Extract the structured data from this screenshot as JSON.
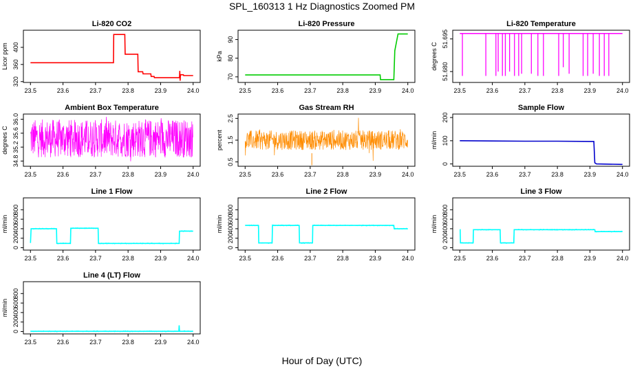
{
  "main_title": "SPL_160313  1 Hz Diagnostics Zoomed PM",
  "x_axis_title": "Hour of Day (UTC)",
  "chart_data": [
    {
      "type": "line",
      "title": "Li-820 CO2",
      "ylabel": "Licor ppm",
      "color": "#ff0000",
      "xlim": [
        23.5,
        24.0
      ],
      "ylim": [
        318,
        440
      ],
      "xticks": [
        "23.5",
        "23.6",
        "23.7",
        "23.8",
        "23.9",
        "24.0"
      ],
      "yticks": [
        "320",
        "360",
        "400"
      ],
      "x": [
        23.5,
        23.6,
        23.7,
        23.755,
        23.756,
        23.79,
        23.791,
        23.83,
        23.831,
        23.845,
        23.846,
        23.87,
        23.871,
        23.88,
        23.881,
        23.958,
        23.959,
        23.96,
        23.961,
        23.97,
        23.971,
        24.0
      ],
      "y": [
        364,
        364,
        364,
        364,
        430,
        430,
        384,
        384,
        343,
        343,
        338,
        338,
        332,
        332,
        329,
        329,
        345,
        322,
        336,
        336,
        334,
        334
      ]
    },
    {
      "type": "line",
      "title": "Li-820 Pressure",
      "ylabel": "kPa",
      "color": "#00cc00",
      "xlim": [
        23.5,
        24.0
      ],
      "ylim": [
        67,
        95
      ],
      "xticks": [
        "23.5",
        "23.6",
        "23.7",
        "23.8",
        "23.9",
        "24.0"
      ],
      "yticks": [
        "70",
        "80",
        "90"
      ],
      "x": [
        23.5,
        23.6,
        23.7,
        23.8,
        23.9,
        23.915,
        23.916,
        23.957,
        23.96,
        23.97,
        24.0
      ],
      "y": [
        71,
        71,
        71,
        71,
        71,
        71,
        68.5,
        68.5,
        84,
        93,
        93
      ]
    },
    {
      "type": "line",
      "title": "Li-820 Temperature",
      "ylabel": "degrees C",
      "color": "#ff00ff",
      "xlim": [
        23.5,
        24.0
      ],
      "ylim": [
        51.675,
        51.699
      ],
      "xticks": [
        "23.5",
        "23.6",
        "23.7",
        "23.8",
        "23.9",
        "24.0"
      ],
      "yticks": [
        "51.680",
        "51.695"
      ],
      "baseline": 51.6975,
      "dip_x": [
        23.508,
        23.58,
        23.611,
        23.618,
        23.631,
        23.64,
        23.653,
        23.668,
        23.681,
        23.69,
        23.72,
        23.74,
        23.757,
        23.804,
        23.818,
        23.836,
        23.879,
        23.893,
        23.91,
        23.929,
        23.944,
        23.958
      ],
      "dip_y": [
        51.678,
        51.678,
        51.678,
        51.68,
        51.678,
        51.678,
        51.68,
        51.678,
        51.678,
        51.679,
        51.679,
        51.678,
        51.678,
        51.678,
        51.682,
        51.679,
        51.678,
        51.678,
        51.679,
        51.678,
        51.678,
        51.678
      ]
    },
    {
      "type": "line",
      "title": "Ambient Box Temperature",
      "ylabel": "degrees C",
      "color": "#ff00ff",
      "xlim": [
        23.5,
        24.0
      ],
      "ylim": [
        34.65,
        36.15
      ],
      "xticks": [
        "23.5",
        "23.6",
        "23.7",
        "23.8",
        "23.9",
        "24.0"
      ],
      "yticks": [
        "34.8",
        "35.2",
        "35.6",
        "36.0"
      ],
      "mean": 35.45,
      "band": [
        34.9,
        36.0
      ]
    },
    {
      "type": "scatter",
      "title": "Gas Stream RH",
      "ylabel": "percent",
      "color": "#ff8c00",
      "xlim": [
        23.5,
        24.0
      ],
      "ylim": [
        0.3,
        2.7
      ],
      "xticks": [
        "23.5",
        "23.6",
        "23.7",
        "23.8",
        "23.9",
        "24.0"
      ],
      "yticks": [
        "0.5",
        "1.5",
        "2.5"
      ],
      "mean": 1.5,
      "band": [
        1.05,
        1.95
      ]
    },
    {
      "type": "line",
      "title": "Sample Flow",
      "ylabel": "ml/min",
      "color": "#0000cc",
      "xlim": [
        23.5,
        24.0
      ],
      "ylim": [
        -10,
        215
      ],
      "xticks": [
        "23.5",
        "23.6",
        "23.7",
        "23.8",
        "23.9",
        "24.0"
      ],
      "yticks": [
        "0",
        "100",
        "200"
      ],
      "x": [
        23.5,
        23.6,
        23.7,
        23.8,
        23.912,
        23.915,
        23.92,
        24.0
      ],
      "y": [
        100,
        99,
        98,
        98,
        97,
        5,
        0,
        -2
      ]
    },
    {
      "type": "line",
      "title": "Line 1 Flow",
      "ylabel": "ml/min",
      "color": "#00ffff",
      "xlim": [
        23.5,
        24.0
      ],
      "ylim": [
        -50,
        1050
      ],
      "xticks": [
        "23.5",
        "23.6",
        "23.7",
        "23.8",
        "23.9",
        "24.0"
      ],
      "yticks": [
        "0",
        "200",
        "400",
        "600",
        "800"
      ],
      "x": [
        23.5,
        23.502,
        23.58,
        23.581,
        23.623,
        23.624,
        23.708,
        23.709,
        23.957,
        23.958,
        24.0
      ],
      "y": [
        100,
        400,
        400,
        90,
        90,
        410,
        410,
        90,
        90,
        350,
        350
      ]
    },
    {
      "type": "line",
      "title": "Line 2 Flow",
      "ylabel": "ml/min",
      "color": "#00ffff",
      "xlim": [
        23.5,
        24.0
      ],
      "ylim": [
        -50,
        1050
      ],
      "xticks": [
        "23.5",
        "23.6",
        "23.7",
        "23.8",
        "23.9",
        "24.0"
      ],
      "yticks": [
        "0",
        "200",
        "400",
        "600",
        "800"
      ],
      "x": [
        23.5,
        23.541,
        23.542,
        23.583,
        23.584,
        23.666,
        23.667,
        23.707,
        23.708,
        23.957,
        23.958,
        24.0
      ],
      "y": [
        470,
        470,
        100,
        100,
        470,
        470,
        100,
        100,
        470,
        470,
        400,
        400
      ]
    },
    {
      "type": "line",
      "title": "Line 3 Flow",
      "ylabel": "ml/min",
      "color": "#00ffff",
      "xlim": [
        23.5,
        24.0
      ],
      "ylim": [
        -50,
        1050
      ],
      "xticks": [
        "23.5",
        "23.6",
        "23.7",
        "23.8",
        "23.9",
        "24.0"
      ],
      "yticks": [
        "0",
        "200",
        "400",
        "600",
        "800"
      ],
      "x": [
        23.5,
        23.501,
        23.502,
        23.541,
        23.542,
        23.624,
        23.625,
        23.666,
        23.667,
        23.8,
        23.915,
        23.916,
        24.0
      ],
      "y": [
        380,
        380,
        100,
        100,
        380,
        380,
        100,
        100,
        380,
        380,
        380,
        340,
        340
      ]
    },
    {
      "type": "line",
      "title": "Line 4 (LT) Flow",
      "ylabel": "ml/min",
      "color": "#00ffff",
      "xlim": [
        23.5,
        24.0
      ],
      "ylim": [
        -50,
        1050
      ],
      "xticks": [
        "23.5",
        "23.6",
        "23.7",
        "23.8",
        "23.9",
        "24.0"
      ],
      "yticks": [
        "0",
        "200",
        "400",
        "600",
        "800"
      ],
      "x": [
        23.5,
        23.956,
        23.957,
        23.958,
        24.0
      ],
      "y": [
        5,
        5,
        130,
        5,
        5
      ]
    }
  ]
}
